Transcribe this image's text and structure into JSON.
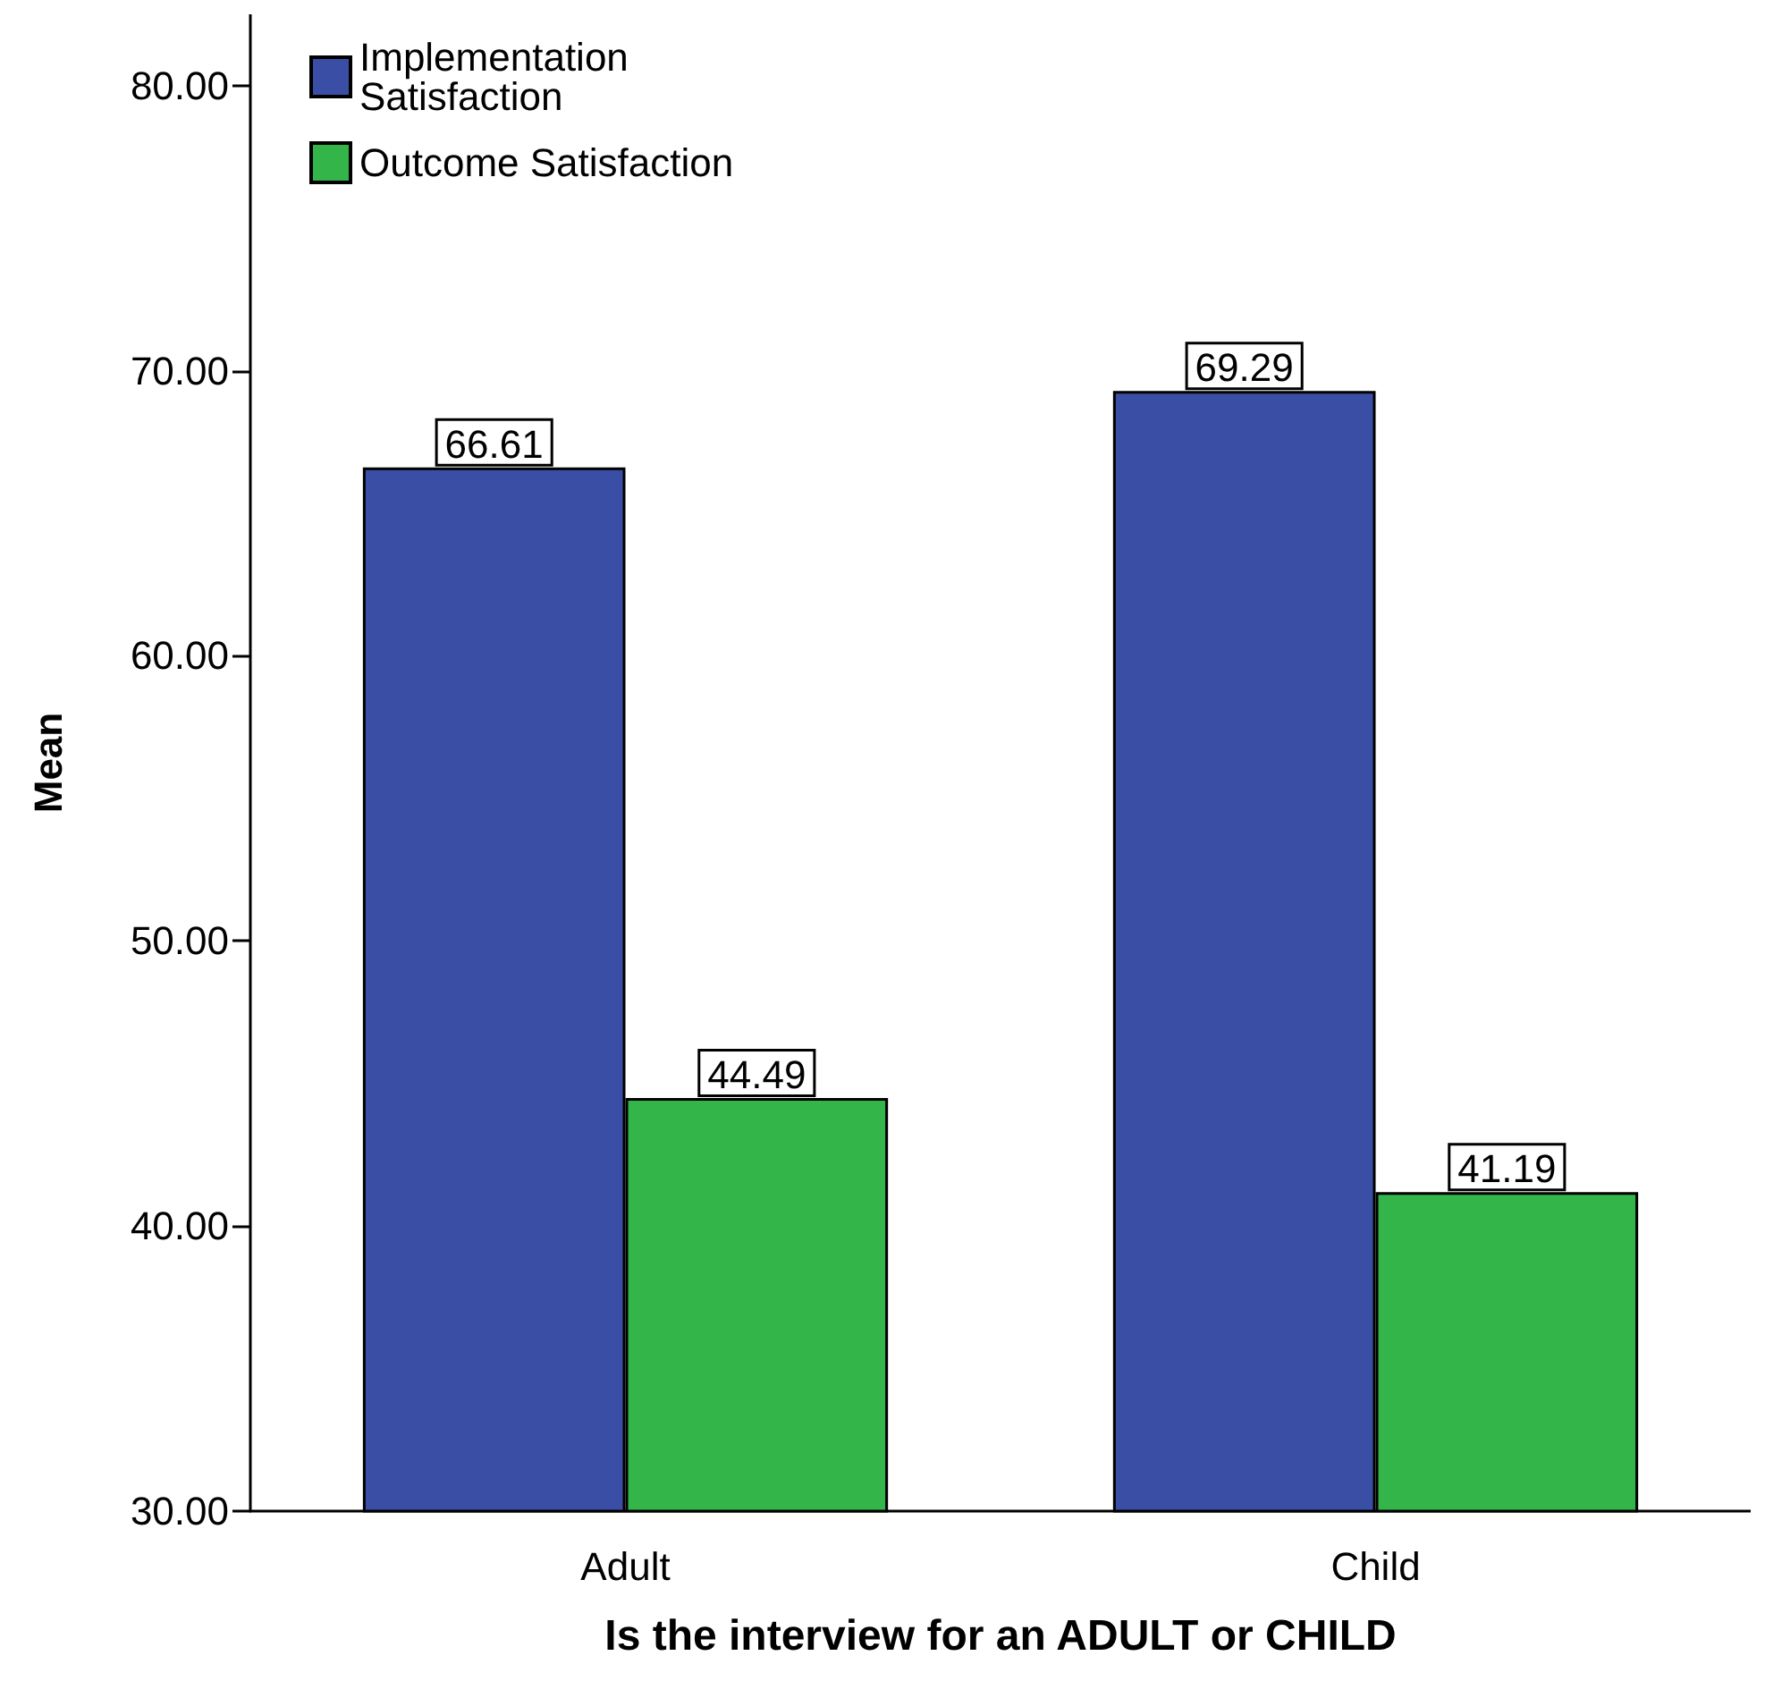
{
  "chart_data": {
    "type": "bar",
    "xlabel": "Is the interview for an ADULT or CHILD",
    "ylabel": "Mean",
    "categories": [
      "Adult",
      "Child"
    ],
    "series": [
      {
        "name": "Implementation Satisfaction",
        "color": "#3b4ea5",
        "values": [
          66.61,
          69.29
        ]
      },
      {
        "name": "Outcome Satisfaction",
        "color": "#33b54a",
        "values": [
          44.49,
          41.19
        ]
      }
    ],
    "ylim": [
      30,
      82.5
    ],
    "yticks": [
      {
        "value": 30,
        "label": "30.00"
      },
      {
        "value": 40,
        "label": "40.00"
      },
      {
        "value": 50,
        "label": "50.00"
      },
      {
        "value": 60,
        "label": "60.00"
      },
      {
        "value": 70,
        "label": "70.00"
      },
      {
        "value": 80,
        "label": "80.00"
      }
    ],
    "data_labels": true,
    "legend": "top left",
    "grid": false
  }
}
